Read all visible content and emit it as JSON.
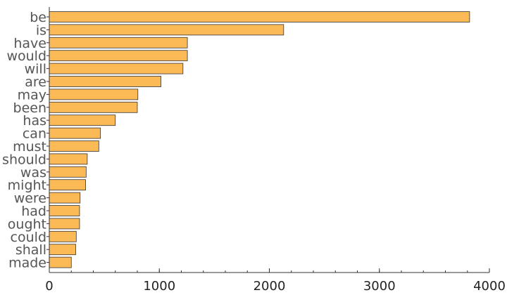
{
  "chart_data": {
    "type": "bar",
    "orientation": "horizontal",
    "categories": [
      "be",
      "is",
      "have",
      "would",
      "will",
      "are",
      "may",
      "been",
      "has",
      "can",
      "must",
      "should",
      "was",
      "might",
      "were",
      "had",
      "ought",
      "could",
      "shall",
      "made"
    ],
    "values": [
      3820,
      2130,
      1255,
      1255,
      1215,
      1015,
      805,
      800,
      600,
      465,
      450,
      345,
      335,
      330,
      280,
      275,
      275,
      245,
      240,
      200
    ],
    "xlim": [
      0,
      4000
    ],
    "x_ticks": [
      0,
      1000,
      2000,
      3000,
      4000
    ],
    "grid": false,
    "title": "",
    "xlabel": "",
    "ylabel": "",
    "colors": {
      "bar_fill": "#FCBA57",
      "bar_stroke": "#333333",
      "label": "#555555",
      "axis": "#333333"
    }
  }
}
